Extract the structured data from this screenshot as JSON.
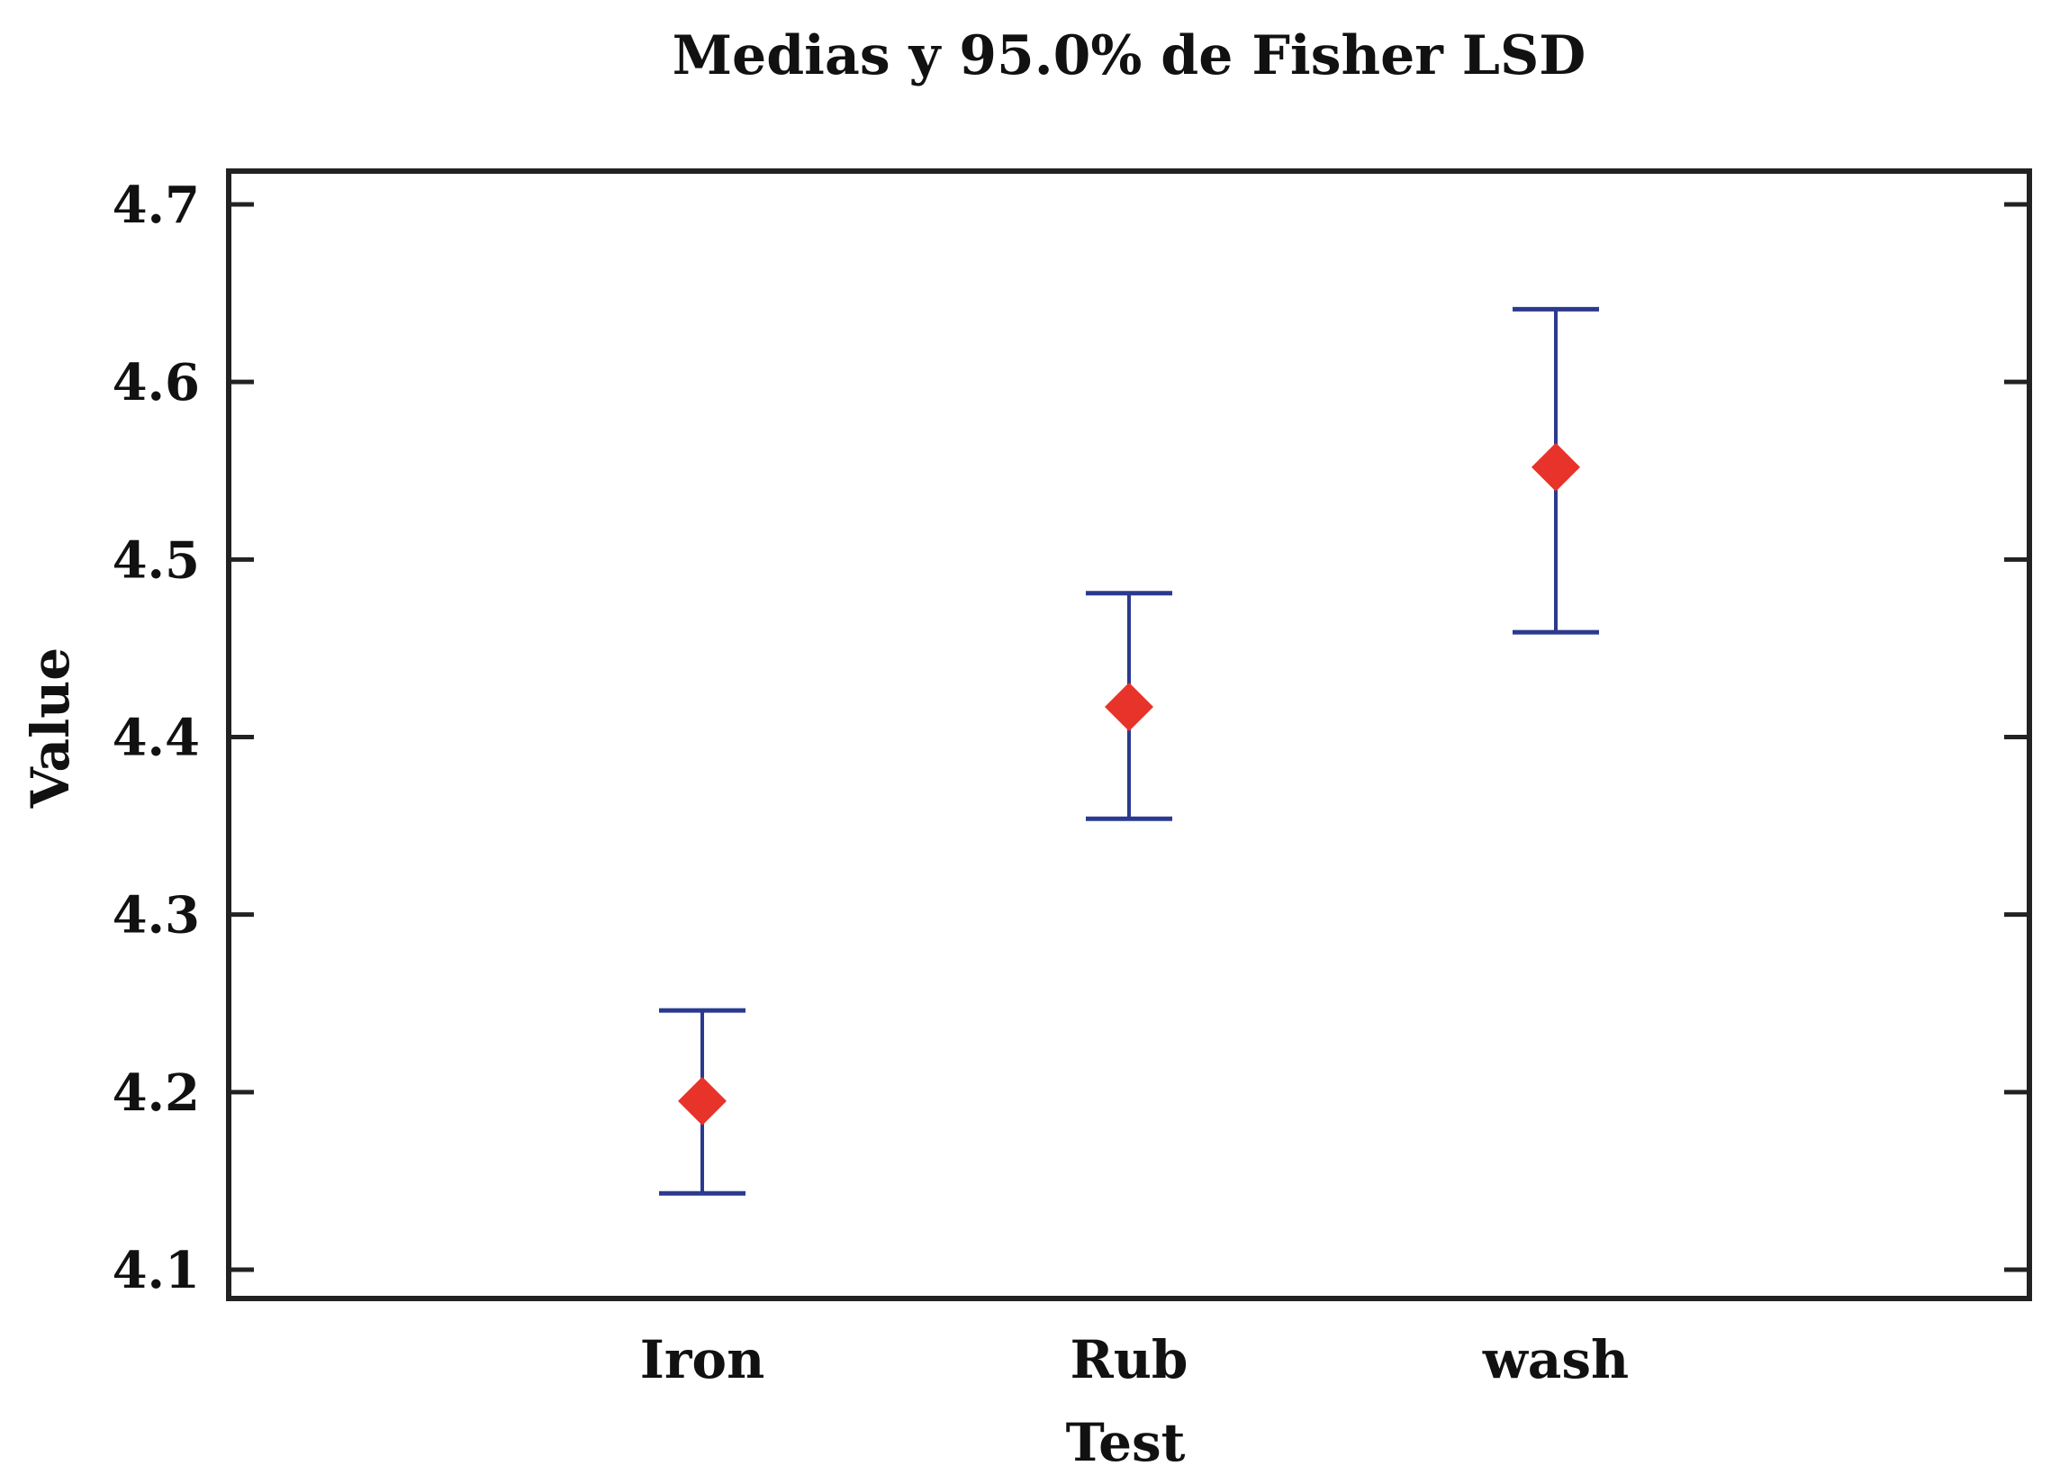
{
  "chart_data": {
    "type": "scatter",
    "title": "Medias y 95.0% de Fisher LSD",
    "xlabel": "Test",
    "ylabel": "Value",
    "categories": [
      "Iron",
      "Rub",
      "wash"
    ],
    "ylim": [
      4.08,
      4.72
    ],
    "yticks": [
      "4.1",
      "4.2",
      "4.3",
      "4.4",
      "4.5",
      "4.6",
      "4.7"
    ],
    "series": [
      {
        "means": [
          4.195,
          4.417,
          4.552
        ],
        "lower": [
          4.143,
          4.354,
          4.459
        ],
        "upper": [
          4.246,
          4.481,
          4.641
        ]
      }
    ],
    "grid": false,
    "colors": {
      "marker": "#e8332a",
      "errorbar": "#2b3a8f",
      "frame": "#222222"
    }
  }
}
